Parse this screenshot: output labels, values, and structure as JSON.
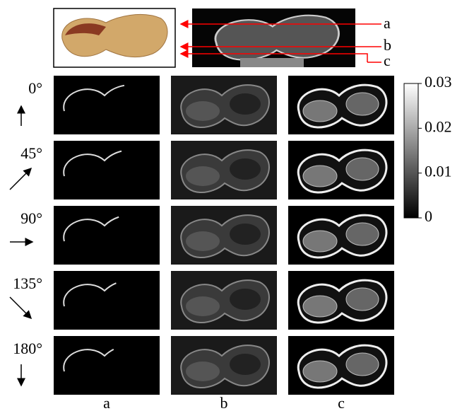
{
  "top_labels": [
    "a",
    "b",
    "c"
  ],
  "angles": [
    "0°",
    "45°",
    "90°",
    "135°",
    "180°"
  ],
  "column_labels": [
    "a",
    "b",
    "c"
  ],
  "colorbar": {
    "range": [
      0,
      0.03
    ],
    "ticks": [
      0,
      0.01,
      0.02,
      0.03
    ]
  }
}
